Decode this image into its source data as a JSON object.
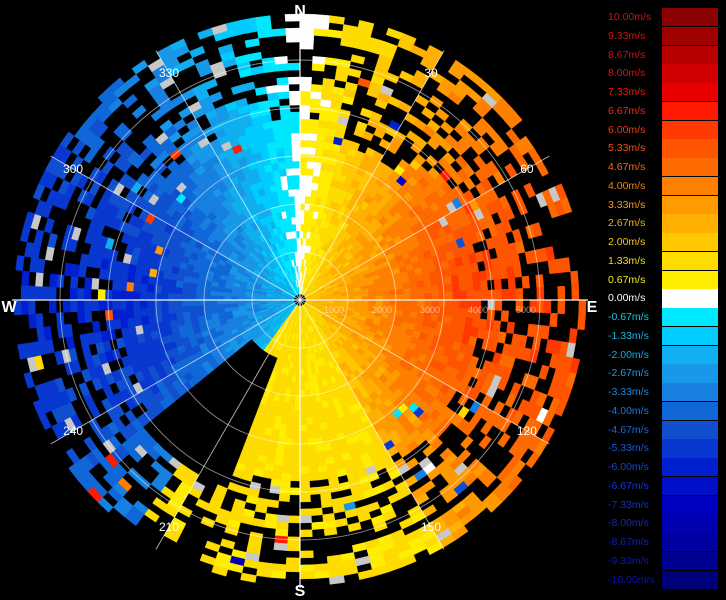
{
  "chart_data": {
    "type": "radial_velocity_ppi",
    "cardinals": {
      "north": "N",
      "east": "E",
      "south": "S",
      "west": "W"
    },
    "azimuth_labels": [
      {
        "az": 30,
        "text": "30"
      },
      {
        "az": 60,
        "text": "60"
      },
      {
        "az": 120,
        "text": "120"
      },
      {
        "az": 150,
        "text": "150"
      },
      {
        "az": 210,
        "text": "210"
      },
      {
        "az": 240,
        "text": "240"
      },
      {
        "az": 300,
        "text": "300"
      },
      {
        "az": 330,
        "text": "330"
      }
    ],
    "range_labels": [
      "1000",
      "2000",
      "3000",
      "4000",
      "5000"
    ],
    "max_range": 5000,
    "color_scale": [
      {
        "label": "10.00m/s",
        "value": 10.0,
        "color": "#8b0000",
        "text_color": "#d01010"
      },
      {
        "label": "9.33m/s",
        "value": 9.33,
        "color": "#a00000",
        "text_color": "#d01010"
      },
      {
        "label": "8.67m/s",
        "value": 8.67,
        "color": "#b80000",
        "text_color": "#d01010"
      },
      {
        "label": "8.00m/s",
        "value": 8.0,
        "color": "#d00000",
        "text_color": "#e01010"
      },
      {
        "label": "7.33m/s",
        "value": 7.33,
        "color": "#e80000",
        "text_color": "#e81a10"
      },
      {
        "label": "6.67m/s",
        "value": 6.67,
        "color": "#ff1a00",
        "text_color": "#f02a10"
      },
      {
        "label": "6.00m/s",
        "value": 6.0,
        "color": "#ff3a00",
        "text_color": "#f23a10"
      },
      {
        "label": "5.33m/s",
        "value": 5.33,
        "color": "#ff5500",
        "text_color": "#f45010"
      },
      {
        "label": "4.67m/s",
        "value": 4.67,
        "color": "#ff6a00",
        "text_color": "#f56810"
      },
      {
        "label": "4.00m/s",
        "value": 4.0,
        "color": "#ff8000",
        "text_color": "#f58010"
      },
      {
        "label": "3.33m/s",
        "value": 3.33,
        "color": "#ff9a00",
        "text_color": "#f59a10"
      },
      {
        "label": "2.67m/s",
        "value": 2.67,
        "color": "#ffb000",
        "text_color": "#f5b010"
      },
      {
        "label": "2.00m/s",
        "value": 2.0,
        "color": "#ffc800",
        "text_color": "#f5c810"
      },
      {
        "label": "1.33m/s",
        "value": 1.33,
        "color": "#ffdc00",
        "text_color": "#f5dc10"
      },
      {
        "label": "0.67m/s",
        "value": 0.67,
        "color": "#ffee00",
        "text_color": "#f5ee10"
      },
      {
        "label": "0.00m/s",
        "value": 0.0,
        "color": "#ffffff",
        "text_color": "#ffffff"
      },
      {
        "label": "-0.67m/s",
        "value": -0.67,
        "color": "#00e8ff",
        "text_color": "#10c8e8"
      },
      {
        "label": "-1.33m/s",
        "value": -1.33,
        "color": "#00ccff",
        "text_color": "#10b8e8"
      },
      {
        "label": "-2.00m/s",
        "value": -2.0,
        "color": "#10b0f0",
        "text_color": "#10a8e8"
      },
      {
        "label": "-2.67m/s",
        "value": -2.67,
        "color": "#1898e8",
        "text_color": "#1898e8"
      },
      {
        "label": "-3.33m/s",
        "value": -3.33,
        "color": "#1880e0",
        "text_color": "#1888e0"
      },
      {
        "label": "-4.00m/s",
        "value": -4.0,
        "color": "#1068d8",
        "text_color": "#1878e0"
      },
      {
        "label": "-4.67m/s",
        "value": -4.67,
        "color": "#1050d0",
        "text_color": "#1868d8"
      },
      {
        "label": "-5.33m/s",
        "value": -5.33,
        "color": "#0838d0",
        "text_color": "#1858d8"
      },
      {
        "label": "-6.00m/s",
        "value": -6.0,
        "color": "#0020d0",
        "text_color": "#1048d0"
      },
      {
        "label": "-6.67m/s",
        "value": -6.67,
        "color": "#0010c8",
        "text_color": "#1038d0"
      },
      {
        "label": "-7.33m/s",
        "value": -7.33,
        "color": "#0000c0",
        "text_color": "#1030c8"
      },
      {
        "label": "-8.00m/s",
        "value": -8.0,
        "color": "#0000b0",
        "text_color": "#1028c0"
      },
      {
        "label": "-8.67m/s",
        "value": -8.67,
        "color": "#0000a0",
        "text_color": "#1020b8"
      },
      {
        "label": "-9.33m/s",
        "value": -9.33,
        "color": "#000090",
        "text_color": "#1018b0"
      },
      {
        "label": "-10.00m/s",
        "value": -10.0,
        "color": "#000078",
        "text_color": "#1010a8"
      }
    ]
  }
}
